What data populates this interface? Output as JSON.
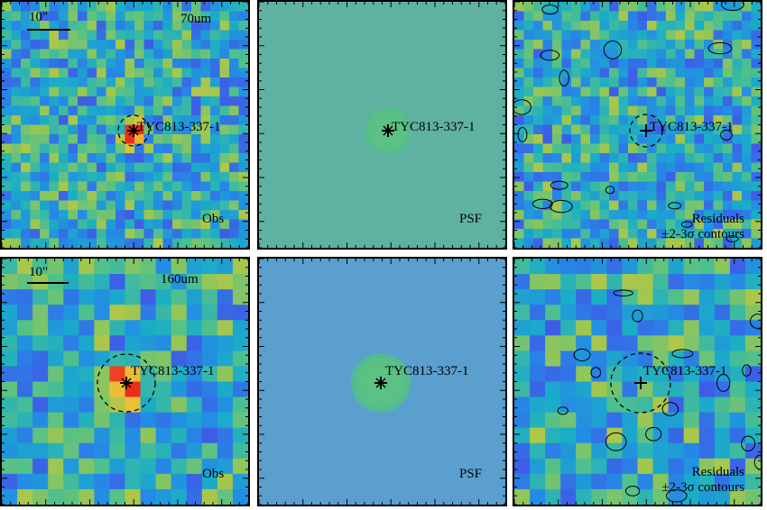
{
  "source_name": "TYC813-337-1",
  "scale_label": "10\"",
  "rows": [
    {
      "wavelength": "70um",
      "panels": [
        {
          "kind": "obs",
          "label": "Obs",
          "seed": 11,
          "grid": 26,
          "palette": "parula",
          "src_amp": 0.95
        },
        {
          "kind": "psf",
          "label": "PSF",
          "seed": 0,
          "grid": 60,
          "palette": "parula",
          "bg": "#5fb1a2"
        },
        {
          "kind": "res",
          "label_lines": [
            "Residuals",
            "±2-3σ contours"
          ],
          "seed": 23,
          "grid": 26,
          "palette": "parula"
        }
      ]
    },
    {
      "wavelength": "160um",
      "panels": [
        {
          "kind": "obs",
          "label": "Obs",
          "seed": 37,
          "grid": 16,
          "palette": "parula",
          "src_amp": 0.55
        },
        {
          "kind": "psf",
          "label": "PSF",
          "seed": 0,
          "grid": 60,
          "palette": "parula",
          "bg": "#5a9fce"
        },
        {
          "kind": "res",
          "label_lines": [
            "Residuals",
            "±2-3σ contours"
          ],
          "seed": 49,
          "grid": 16,
          "palette": "parula"
        }
      ]
    }
  ]
}
